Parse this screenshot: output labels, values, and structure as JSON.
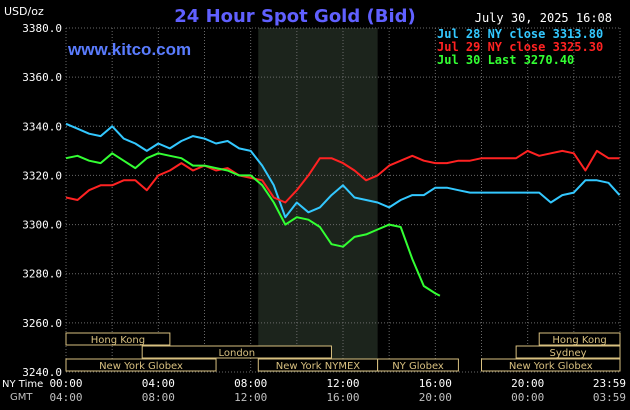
{
  "chart_data": {
    "type": "line",
    "title": "24 Hour Spot Gold (Bid)",
    "site": "www.kitco.com",
    "timestamp": "July 30, 2025 16:08",
    "y_unit": "USD/oz",
    "ylim": [
      3240,
      3380
    ],
    "y_ticks": [
      "3380.0",
      "3360.0",
      "3340.0",
      "3320.0",
      "3300.0",
      "3280.0",
      "3260.0",
      "3240.0"
    ],
    "x_label_ny": "NY Time",
    "x_label_gmt": "GMT",
    "x_ticks_ny": [
      "00:00",
      "04:00",
      "08:00",
      "12:00",
      "16:00",
      "20:00",
      "23:59"
    ],
    "x_ticks_gmt": [
      "04:00",
      "08:00",
      "12:00",
      "16:00",
      "20:00",
      "00:00",
      "03:59"
    ],
    "x_tick_hours": [
      0,
      4,
      8,
      12,
      16,
      20,
      23.983
    ],
    "xlim_hours": [
      0,
      24
    ],
    "shaded_region_hours": [
      8.33,
      13.5
    ],
    "grid": true,
    "legend_position": "top-right",
    "series": [
      {
        "name": "Jul 28 NY close 3313.80",
        "color": "#33c8ff",
        "x": [
          0,
          0.5,
          1,
          1.5,
          2,
          2.5,
          3,
          3.5,
          4,
          4.5,
          5,
          5.5,
          6,
          6.5,
          7,
          7.5,
          8,
          8.5,
          9,
          9.5,
          10,
          10.5,
          11,
          11.5,
          12,
          12.5,
          13,
          13.5,
          14,
          14.5,
          15,
          15.5,
          16,
          16.5,
          17,
          17.5,
          18,
          18.5,
          19,
          19.5,
          20,
          20.5,
          21,
          21.5,
          22,
          22.5,
          23,
          23.5,
          23.98
        ],
        "values": [
          3341,
          3339,
          3337,
          3336,
          3340,
          3335,
          3333,
          3330,
          3333,
          3331,
          3334,
          3336,
          3335,
          3333,
          3334,
          3331,
          3330,
          3324,
          3316,
          3303,
          3309,
          3305,
          3307,
          3312,
          3316,
          3311,
          3310,
          3309,
          3307,
          3310,
          3312,
          3312,
          3315,
          3315,
          3314,
          3313,
          3313,
          3313,
          3313,
          3313,
          3313,
          3313,
          3309,
          3312,
          3313,
          3318,
          3318,
          3317,
          3312
        ]
      },
      {
        "name": "Jul 29 NY close 3325.30",
        "color": "#ff2222",
        "x": [
          0,
          0.5,
          1,
          1.5,
          2,
          2.5,
          3,
          3.5,
          4,
          4.5,
          5,
          5.5,
          6,
          6.5,
          7,
          7.5,
          8,
          8.5,
          9,
          9.5,
          10,
          10.5,
          11,
          11.5,
          12,
          12.5,
          13,
          13.5,
          14,
          14.5,
          15,
          15.5,
          16,
          16.5,
          17,
          17.5,
          18,
          18.5,
          19,
          19.5,
          20,
          20.5,
          21,
          21.5,
          22,
          22.5,
          23,
          23.5,
          23.98
        ],
        "values": [
          3311,
          3310,
          3314,
          3316,
          3316,
          3318,
          3318,
          3314,
          3320,
          3322,
          3325,
          3322,
          3324,
          3322,
          3323,
          3320,
          3319,
          3318,
          3311,
          3309,
          3314,
          3320,
          3327,
          3327,
          3325,
          3322,
          3318,
          3320,
          3324,
          3326,
          3328,
          3326,
          3325,
          3325,
          3326,
          3326,
          3327,
          3327,
          3327,
          3327,
          3330,
          3328,
          3329,
          3330,
          3329,
          3322,
          3330,
          3327,
          3327
        ]
      },
      {
        "name": "Jul 30 Last 3270.40",
        "color": "#33ff33",
        "x": [
          0,
          0.5,
          1,
          1.5,
          2,
          2.5,
          3,
          3.5,
          4,
          4.5,
          5,
          5.5,
          6,
          6.5,
          7,
          7.5,
          8,
          8.5,
          9,
          9.5,
          10,
          10.5,
          11,
          11.5,
          12,
          12.5,
          13,
          13.5,
          14,
          14.5,
          15,
          15.5,
          16,
          16.2
        ],
        "values": [
          3327,
          3328,
          3326,
          3325,
          3329,
          3326,
          3323,
          3327,
          3329,
          3328,
          3327,
          3324,
          3324,
          3323,
          3322,
          3320,
          3320,
          3316,
          3309,
          3300,
          3303,
          3302,
          3299,
          3292,
          3291,
          3295,
          3296,
          3298,
          3300,
          3299,
          3286,
          3275,
          3272,
          3271
        ]
      }
    ]
  },
  "session_bands": [
    {
      "label": "Hong Kong",
      "row": 1,
      "start": 0,
      "end": 4.5
    },
    {
      "label": "London",
      "row": 2,
      "start": 3.3,
      "end": 11.5
    },
    {
      "label": "New York Globex",
      "row": 3,
      "start": 0,
      "end": 6.5
    },
    {
      "label": "New York NYMEX",
      "row": 3,
      "start": 8.33,
      "end": 13.5
    },
    {
      "label": "NY Globex",
      "row": 3,
      "start": 13.5,
      "end": 17
    },
    {
      "label": "Hong Kong",
      "row": 1,
      "start": 20.5,
      "end": 24
    },
    {
      "label": "Sydney",
      "row": 2,
      "start": 19.5,
      "end": 24
    },
    {
      "label": "New York Globex",
      "row": 3,
      "start": 18,
      "end": 24
    }
  ],
  "colors": {
    "background": "#000000",
    "plot_bg": "#000000",
    "shade": "#1c241c",
    "grid": "#6a6a6a",
    "title": "#6060ff",
    "site": "#5a7cff",
    "text": "#ffffff",
    "gmt_text": "#c0c0c0",
    "band_border": "#d8c080"
  }
}
